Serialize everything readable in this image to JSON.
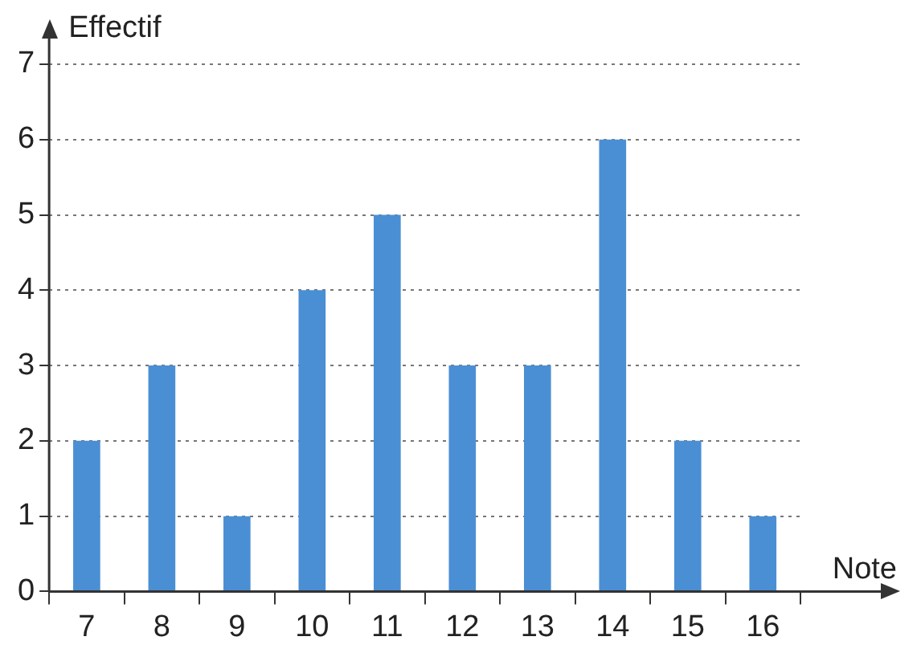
{
  "chart_data": {
    "type": "bar",
    "xlabel": "Note",
    "ylabel": "Effectif",
    "categories": [
      "7",
      "8",
      "9",
      "10",
      "11",
      "12",
      "13",
      "14",
      "15",
      "16"
    ],
    "values": [
      2,
      3,
      1,
      4,
      5,
      3,
      3,
      6,
      2,
      1
    ],
    "color": "#4a8fd4",
    "ylim": [
      0,
      7
    ],
    "yticks": [
      0,
      1,
      2,
      3,
      4,
      5,
      6,
      7
    ],
    "grid": "y",
    "line_style": "dotted"
  }
}
